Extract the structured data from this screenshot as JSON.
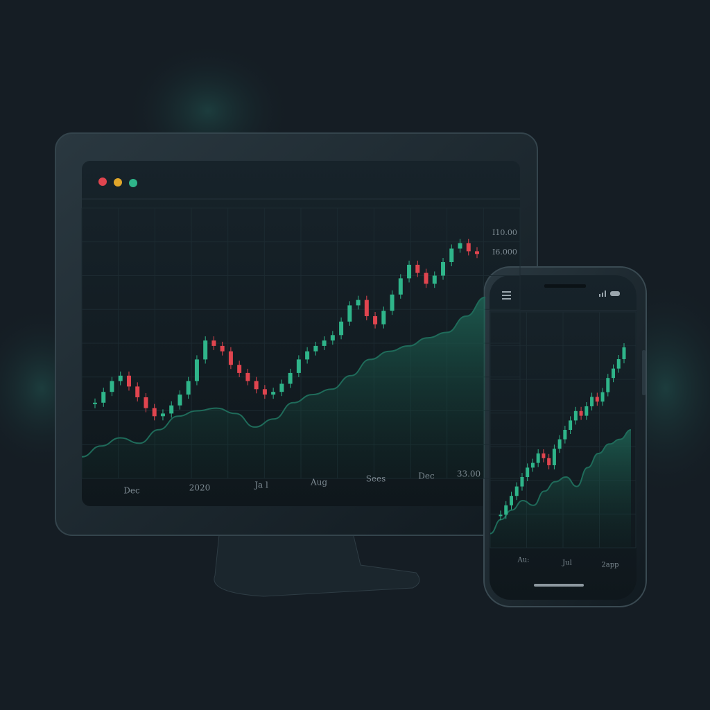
{
  "chart_data": [
    {
      "type": "candlestick",
      "values": [
        28,
        32,
        36,
        38,
        34,
        30,
        26,
        23,
        24,
        27,
        31,
        36,
        44,
        51,
        49,
        47,
        42,
        39,
        36,
        33,
        31,
        32,
        35,
        39,
        44,
        47,
        49,
        51,
        53,
        58,
        64,
        66,
        60,
        57,
        62,
        68,
        74,
        79,
        76,
        72,
        75,
        80,
        85,
        87,
        84,
        83
      ],
      "area_values": [
        8,
        12,
        15,
        13,
        18,
        23,
        25,
        26,
        24,
        19,
        22,
        28,
        31,
        33,
        38,
        44,
        47,
        49,
        52,
        54,
        60,
        67
      ],
      "ylim": [
        0,
        100
      ],
      "up_color": "#2fb58a",
      "down_color": "#e0454f",
      "area_color": "#1f6b5a",
      "x_labels": [
        "Dec",
        "2020",
        "Ja l",
        "Aug",
        "Sees",
        "Dec",
        "33.00"
      ],
      "y_labels": [
        "I10.00",
        "I6.000"
      ],
      "grid": true
    },
    {
      "type": "candlestick",
      "values": [
        14,
        18,
        22,
        26,
        30,
        34,
        36,
        40,
        38,
        35,
        42,
        46,
        50,
        54,
        58,
        56,
        60,
        64,
        62,
        66,
        72,
        76,
        80,
        85
      ],
      "area_values": [
        6,
        12,
        16,
        20,
        18,
        24,
        28,
        30,
        26,
        34,
        40,
        44,
        46,
        50
      ],
      "ylim": [
        0,
        100
      ],
      "up_color": "#2fb58a",
      "down_color": "#e0454f",
      "area_color": "#1f6b5a",
      "x_labels": [
        "Au:",
        "Jul",
        "2app"
      ],
      "grid": true
    }
  ]
}
